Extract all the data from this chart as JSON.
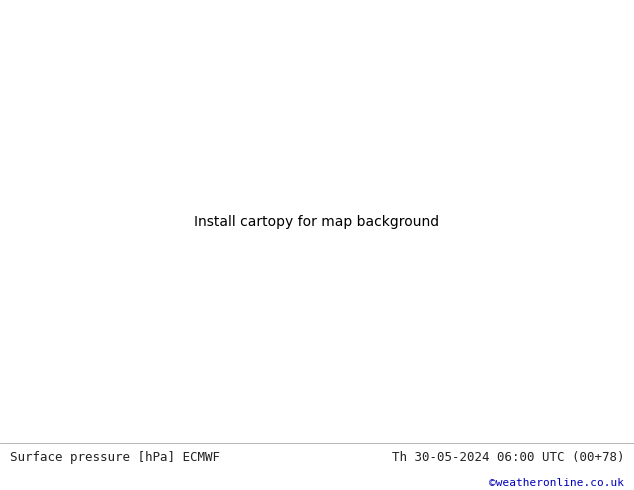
{
  "title_left": "Surface pressure [hPa] ECMWF",
  "title_right": "Th 30-05-2024 06:00 UTC (00+78)",
  "credit": "©weatheronline.co.uk",
  "bg_ocean_color": "#d8d8d8",
  "land_color": "#c8e8a0",
  "lake_color": "#d8d8d8",
  "border_color": "#888888",
  "coast_color": "#888888",
  "footer_bg": "#ffffff",
  "title_color": "#222222",
  "credit_color": "#0000bb",
  "font_size_title": 9,
  "font_size_credit": 8,
  "red": "#cc0000",
  "black": "#000000",
  "blue": "#0055cc",
  "lw": 1.3,
  "label_fs": 7,
  "extent": [
    -15,
    95,
    35,
    75
  ]
}
